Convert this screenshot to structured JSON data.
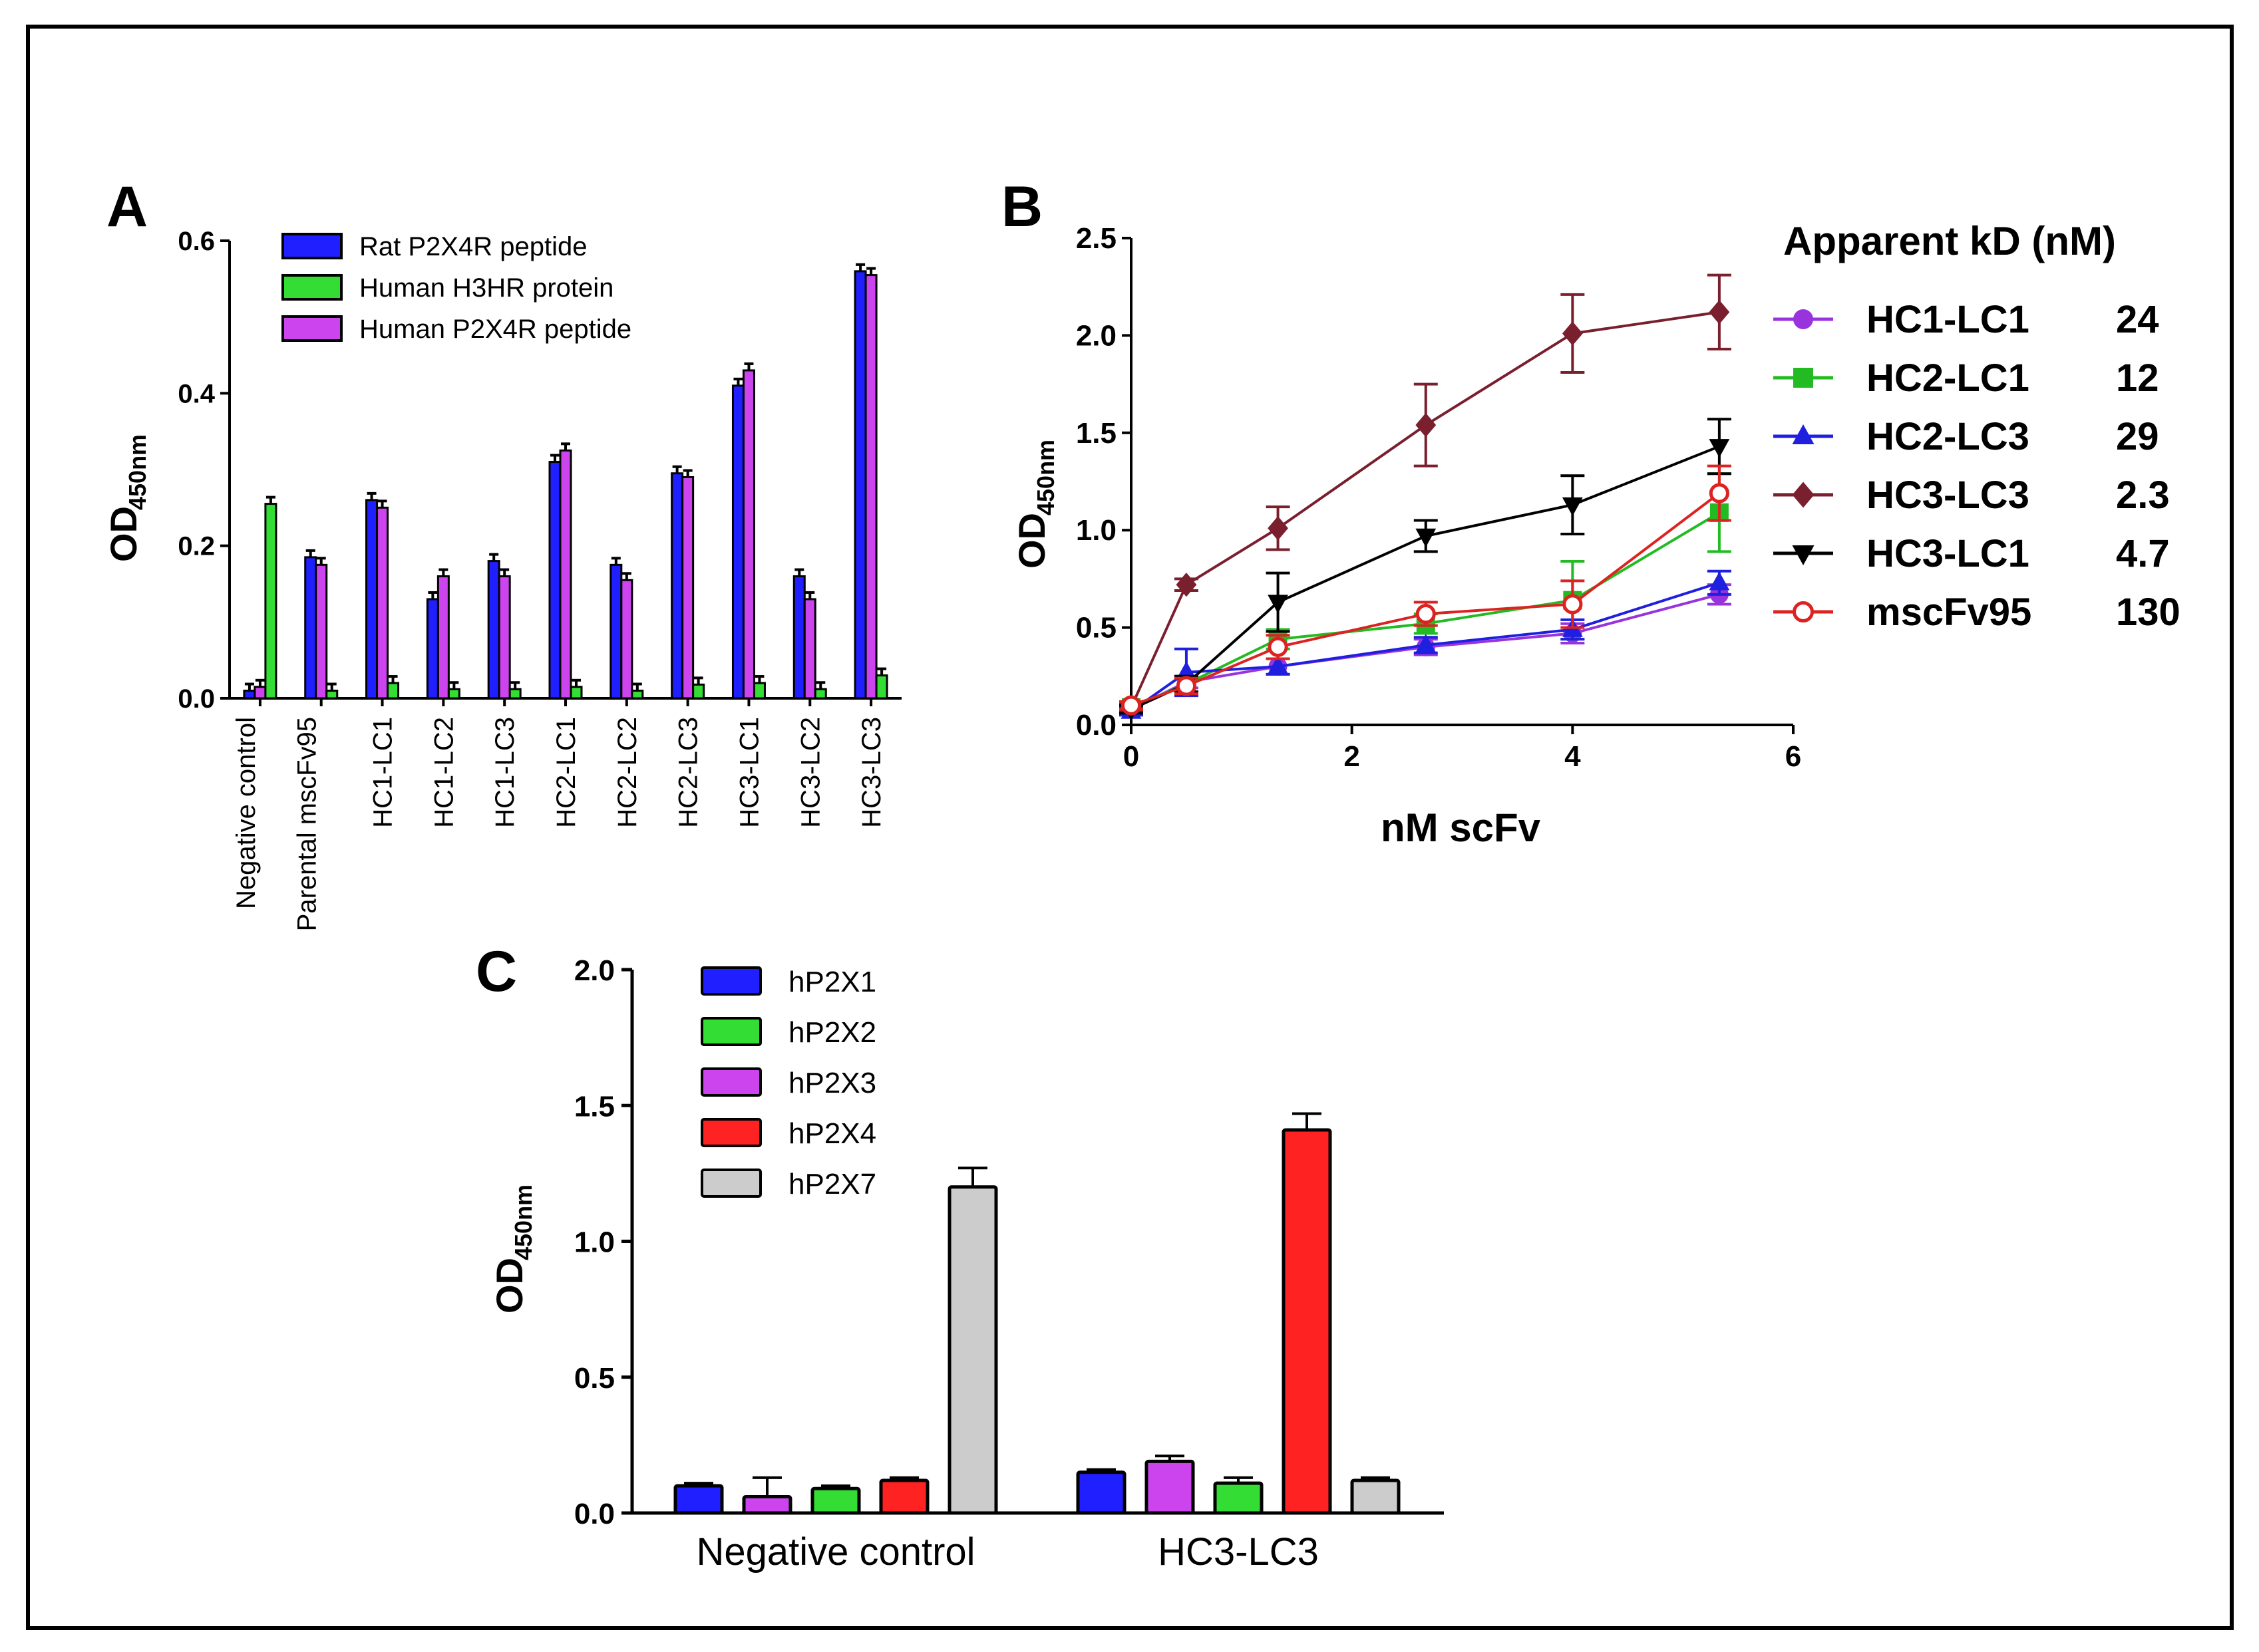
{
  "chart_data": [
    {
      "panel_label": "A",
      "type": "bar",
      "ylabel_main": "OD",
      "ylabel_sub": "450nm",
      "ylim": [
        0,
        0.6
      ],
      "yticks": [
        "0.0",
        "0.2",
        "0.4",
        "0.6"
      ],
      "categories": [
        "Negative control",
        "Parental mscFv95",
        "HC1-LC1",
        "HC1-LC2",
        "HC1-LC3",
        "HC2-LC1",
        "HC2-LC2",
        "HC2-LC3",
        "HC3-LC1",
        "HC3-LC2",
        "HC3-LC3"
      ],
      "series": [
        {
          "name": "Rat P2X4R peptide",
          "color": "#1f1fff",
          "values": [
            0.01,
            0.185,
            0.26,
            0.13,
            0.18,
            0.31,
            0.175,
            0.295,
            0.41,
            0.16,
            0.56
          ]
        },
        {
          "name": "Human P2X4R peptide",
          "color": "#cc44ee",
          "values": [
            0.015,
            0.175,
            0.25,
            0.16,
            0.16,
            0.325,
            0.155,
            0.29,
            0.43,
            0.13,
            0.555
          ]
        },
        {
          "name": "Human  H3HR     protein",
          "color": "#33dd33",
          "values": [
            0.255,
            0.01,
            0.02,
            0.012,
            0.012,
            0.015,
            0.01,
            0.018,
            0.02,
            0.012,
            0.03
          ]
        }
      ]
    },
    {
      "panel_label": "B",
      "type": "line",
      "title": "Apparent kD (nM)",
      "xlabel": "nM scFv",
      "ylabel_main": "OD",
      "ylabel_sub": "450nm",
      "xlim": [
        0,
        6
      ],
      "ylim": [
        0,
        2.5
      ],
      "xticks": [
        "0",
        "2",
        "4",
        "6"
      ],
      "yticks": [
        "0.0",
        "0.5",
        "1.0",
        "1.5",
        "2.0",
        "2.5"
      ],
      "x": [
        0,
        0.5,
        1.33,
        2.67,
        4,
        5.33
      ],
      "series": [
        {
          "name": "HC1-LC1",
          "kd": "24",
          "color": "#9933dd",
          "marker": "circle",
          "values": [
            0.08,
            0.22,
            0.3,
            0.4,
            0.47,
            0.67
          ],
          "errors": [
            0.02,
            0.03,
            0.04,
            0.04,
            0.05,
            0.05
          ]
        },
        {
          "name": "HC2-LC1",
          "kd": "12",
          "color": "#22bb22",
          "marker": "square",
          "values": [
            0.09,
            0.21,
            0.44,
            0.52,
            0.64,
            1.09
          ],
          "errors": [
            0.02,
            0.04,
            0.05,
            0.05,
            0.2,
            0.2
          ]
        },
        {
          "name": "HC2-LC3",
          "kd": "29",
          "color": "#1f1fe0",
          "marker": "triangle",
          "values": [
            0.07,
            0.27,
            0.3,
            0.41,
            0.49,
            0.73
          ],
          "errors": [
            0.02,
            0.12,
            0.04,
            0.04,
            0.05,
            0.06
          ]
        },
        {
          "name": "HC3-LC3",
          "kd": "2.3",
          "color": "#7a1f2e",
          "marker": "diamond",
          "values": [
            0.09,
            0.72,
            1.01,
            1.54,
            2.01,
            2.12
          ],
          "errors": [
            0.02,
            0.03,
            0.11,
            0.21,
            0.2,
            0.19
          ]
        },
        {
          "name": "HC3-LC1",
          "kd": "4.7",
          "color": "#000000",
          "marker": "triangle-down",
          "values": [
            0.08,
            0.21,
            0.63,
            0.97,
            1.13,
            1.43
          ],
          "errors": [
            0.02,
            0.04,
            0.15,
            0.08,
            0.15,
            0.14
          ]
        },
        {
          "name": "mscFv95",
          "kd": "130",
          "color": "#dd2222",
          "marker": "open-circle",
          "values": [
            0.1,
            0.2,
            0.4,
            0.57,
            0.62,
            1.19
          ],
          "errors": [
            0.02,
            0.04,
            0.06,
            0.06,
            0.12,
            0.14
          ]
        }
      ]
    },
    {
      "panel_label": "C",
      "type": "bar",
      "ylabel_main": "OD",
      "ylabel_sub": "450nm",
      "ylim": [
        0,
        2.0
      ],
      "yticks": [
        "0.0",
        "0.5",
        "1.0",
        "1.5",
        "2.0"
      ],
      "categories": [
        "Negative control",
        "HC3-LC3"
      ],
      "legend": [
        {
          "name": "hP2X1",
          "color": "#1f1fff"
        },
        {
          "name": "hP2X2",
          "color": "#33dd33"
        },
        {
          "name": "hP2X3",
          "color": "#cc44ee"
        },
        {
          "name": "hP2X4",
          "color": "#ff2222"
        },
        {
          "name": "hP2X7",
          "color": "#cccccc"
        }
      ],
      "groups": [
        {
          "category": "Negative control",
          "bars": [
            {
              "name": "hP2X1",
              "color": "#1f1fff",
              "value": 0.1,
              "error": 0.01
            },
            {
              "name": "hP2X3",
              "color": "#cc44ee",
              "value": 0.06,
              "error": 0.07
            },
            {
              "name": "hP2X2",
              "color": "#33dd33",
              "value": 0.09,
              "error": 0.01
            },
            {
              "name": "hP2X4",
              "color": "#ff2222",
              "value": 0.12,
              "error": 0.01
            },
            {
              "name": "hP2X7",
              "color": "#cccccc",
              "value": 1.2,
              "error": 0.07
            }
          ]
        },
        {
          "category": "HC3-LC3",
          "bars": [
            {
              "name": "hP2X1",
              "color": "#1f1fff",
              "value": 0.15,
              "error": 0.01
            },
            {
              "name": "hP2X3",
              "color": "#cc44ee",
              "value": 0.19,
              "error": 0.02
            },
            {
              "name": "hP2X2",
              "color": "#33dd33",
              "value": 0.11,
              "error": 0.02
            },
            {
              "name": "hP2X4",
              "color": "#ff2222",
              "value": 1.41,
              "error": 0.06
            },
            {
              "name": "hP2X7",
              "color": "#cccccc",
              "value": 0.12,
              "error": 0.01
            }
          ]
        }
      ]
    }
  ]
}
